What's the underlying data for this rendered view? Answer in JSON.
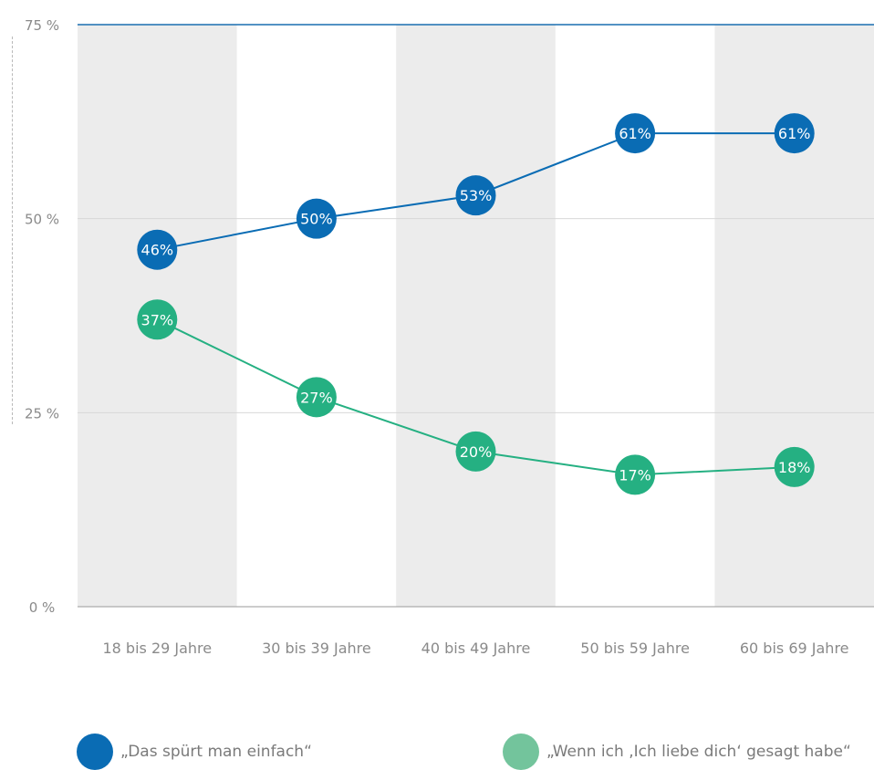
{
  "colors": {
    "series1": "#0a6cb4",
    "series2": "#25b082",
    "legend_series2": "#73c49c",
    "band": "#ececec",
    "grid": "#d8d8d8",
    "top_line": "#1a6fb0",
    "text": "#8a8a8a"
  },
  "chart_data": {
    "type": "line",
    "categories": [
      "18 bis 29 Jahre",
      "30 bis 39 Jahre",
      "40 bis 49 Jahre",
      "50 bis 59 Jahre",
      "60 bis 69 Jahre"
    ],
    "ylim": [
      0,
      75
    ],
    "yticks": [
      0,
      25,
      50,
      75
    ],
    "ytick_labels": [
      "0 %",
      "25 %",
      "50 %",
      "75 %"
    ],
    "value_suffix": "%",
    "series": [
      {
        "name": "„Das spürt man einfach“",
        "values": [
          46,
          50,
          53,
          61,
          61
        ]
      },
      {
        "name": "„Wenn ich ‚Ich liebe dich‘ gesagt habe“",
        "values": [
          37,
          27,
          20,
          17,
          18
        ]
      }
    ],
    "grid": true,
    "legend_position": "bottom"
  },
  "legend": {
    "items": [
      {
        "label": "„Das spürt man einfach“"
      },
      {
        "label": "„Wenn ich ‚Ich liebe dich‘ gesagt habe“"
      }
    ]
  }
}
